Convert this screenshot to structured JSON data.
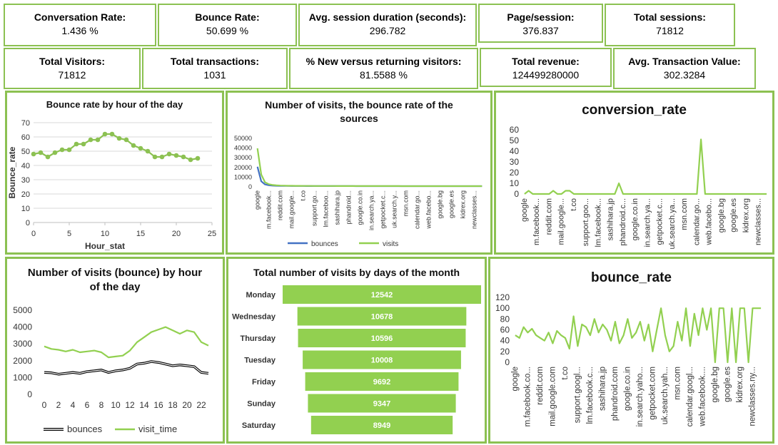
{
  "kpis": [
    {
      "label": "Conversation Rate:",
      "value": "1.436 %"
    },
    {
      "label": "Bounce Rate:",
      "value": "50.699 %"
    },
    {
      "label": "Avg. session duration (seconds):",
      "value": "296.782"
    },
    {
      "label": "Page/session:",
      "value": "376.837"
    },
    {
      "label": "Total sessions:",
      "value": "71812"
    },
    {
      "label": "Total Visitors:",
      "value": "71812"
    },
    {
      "label": "Total transactions:",
      "value": "1031"
    },
    {
      "label": "% New versus returning visitors:",
      "value": "81.5588 %"
    },
    {
      "label": "Total revenue:",
      "value": "124499280000"
    },
    {
      "label": "Avg. Transaction Value:",
      "value": "302.3284"
    }
  ],
  "chart_data": [
    {
      "type": "line",
      "title": "Bounce rate by hour of the day",
      "xlabel": "Hour_stat",
      "ylabel": "Bounce_rate",
      "x": [
        0,
        1,
        2,
        3,
        4,
        5,
        6,
        7,
        8,
        9,
        10,
        11,
        12,
        13,
        14,
        15,
        16,
        17,
        18,
        19,
        20,
        21,
        22,
        23
      ],
      "values": [
        48,
        49,
        46,
        49,
        51,
        51,
        55,
        55,
        58,
        58,
        62,
        62,
        59,
        58,
        54,
        52,
        50,
        46,
        46,
        48,
        47,
        46,
        44,
        45
      ],
      "color": "#8cc152",
      "markers": true,
      "xlim": [
        0,
        25
      ],
      "xticks": [
        0,
        5,
        10,
        15,
        20,
        25
      ],
      "ylim": [
        0,
        70
      ],
      "yticks": [
        0,
        10,
        20,
        30,
        40,
        50,
        60,
        70
      ],
      "grid": true
    },
    {
      "type": "line",
      "title": "Number of visits, the bounce rate of the sources",
      "categories": [
        "google",
        null,
        null,
        "m.facebook...",
        null,
        null,
        "reddit.com",
        null,
        null,
        "mail.google...",
        null,
        null,
        "t.co",
        null,
        null,
        "support.go...",
        null,
        null,
        "lm.faceboo...",
        null,
        null,
        "sashihara.jp",
        null,
        null,
        "phandroid...",
        null,
        null,
        "google.co.in",
        null,
        null,
        "in.search.ya...",
        null,
        null,
        "getpocket.c...",
        null,
        null,
        "uk.search.y...",
        null,
        null,
        "msn.com",
        null,
        null,
        "calendar.go...",
        null,
        null,
        "web.facebo...",
        null,
        null,
        "google.bg",
        null,
        null,
        "google.es",
        null,
        null,
        "kidrex.org",
        null,
        null,
        "newclasses...",
        null,
        null
      ],
      "series": [
        {
          "name": "bounces",
          "color": "#4472c4",
          "values": [
            20000,
            5000,
            1800,
            900,
            550,
            380,
            300,
            240,
            200,
            170,
            150,
            130,
            120,
            110,
            100,
            90,
            80,
            70,
            65,
            60,
            55,
            50,
            45,
            42,
            40,
            38,
            35,
            32,
            30,
            28,
            26,
            24,
            22,
            20,
            19,
            18,
            17,
            16,
            15,
            14,
            13,
            12,
            11,
            10,
            9,
            8,
            7,
            6,
            5,
            4,
            4,
            3,
            3,
            2,
            2,
            2,
            1,
            1,
            1,
            0
          ]
        },
        {
          "name": "visits",
          "color": "#92d050",
          "values": [
            39000,
            12000,
            4000,
            2000,
            1200,
            800,
            600,
            500,
            400,
            350,
            300,
            280,
            250,
            220,
            200,
            180,
            160,
            150,
            140,
            130,
            120,
            110,
            100,
            95,
            90,
            85,
            80,
            75,
            70,
            65,
            60,
            55,
            50,
            48,
            45,
            42,
            40,
            38,
            35,
            32,
            30,
            28,
            26,
            24,
            22,
            20,
            18,
            16,
            14,
            12,
            10,
            9,
            8,
            7,
            6,
            5,
            4,
            3,
            2,
            1
          ]
        }
      ],
      "ylim": [
        0,
        50000
      ],
      "yticks": [
        0,
        10000,
        20000,
        30000,
        40000,
        50000
      ],
      "grid": false,
      "legend": "bottom"
    },
    {
      "type": "line",
      "title": "conversion_rate",
      "categories": [
        "google",
        null,
        null,
        "m.facebook...",
        null,
        null,
        "reddit.com",
        null,
        null,
        "mail.google...",
        null,
        null,
        "t.co",
        null,
        null,
        "support.goo...",
        null,
        null,
        "lm.facebook...",
        null,
        null,
        "sashihara.jp",
        null,
        null,
        "phandroid.c...",
        null,
        null,
        "google.co.in",
        null,
        null,
        "in.search.ya...",
        null,
        null,
        "getpocket.c...",
        null,
        null,
        "uk.search.ya...",
        null,
        null,
        "msn.com",
        null,
        null,
        "calendar.go...",
        null,
        null,
        "web.facebo...",
        null,
        null,
        "google.bg",
        null,
        null,
        "google.es",
        null,
        null,
        "kidrex.org",
        null,
        null,
        "newclasses...",
        null,
        null
      ],
      "values": [
        0,
        3,
        0,
        0,
        0,
        0,
        0,
        3,
        0,
        0,
        3,
        3,
        0,
        0,
        0,
        0,
        0,
        0,
        0,
        0,
        0,
        0,
        0,
        10,
        0,
        0,
        0,
        0,
        0,
        0,
        0,
        0,
        0,
        0,
        0,
        0,
        0,
        0,
        0,
        0,
        0,
        0,
        0,
        51,
        0,
        0,
        0,
        0,
        0,
        0,
        0,
        0,
        0,
        0,
        0,
        0,
        0,
        0,
        0,
        0
      ],
      "color": "#92d050",
      "ylim": [
        0,
        60
      ],
      "yticks": [
        0,
        10,
        20,
        30,
        40,
        50,
        60
      ],
      "grid": false
    },
    {
      "type": "line",
      "title": "Number of visits (bounce) by hour of the day",
      "x": [
        0,
        1,
        2,
        3,
        4,
        5,
        6,
        7,
        8,
        9,
        10,
        11,
        12,
        13,
        14,
        15,
        16,
        17,
        18,
        19,
        20,
        21,
        22,
        23
      ],
      "series": [
        {
          "name": "bounces",
          "color": "#000000",
          "values": [
            1300,
            1280,
            1200,
            1250,
            1300,
            1250,
            1350,
            1400,
            1450,
            1300,
            1400,
            1450,
            1550,
            1800,
            1850,
            1950,
            1900,
            1800,
            1700,
            1750,
            1700,
            1650,
            1300,
            1250
          ]
        },
        {
          "name": "visit_time",
          "color": "#92d050",
          "values": [
            2850,
            2700,
            2650,
            2550,
            2650,
            2500,
            2550,
            2600,
            2500,
            2200,
            2250,
            2300,
            2600,
            3100,
            3400,
            3700,
            3850,
            4000,
            3800,
            3600,
            3800,
            3700,
            3100,
            2900
          ]
        }
      ],
      "xlim": [
        0,
        23
      ],
      "xticks": [
        0,
        2,
        4,
        6,
        8,
        10,
        12,
        14,
        16,
        18,
        20,
        22
      ],
      "ylim": [
        0,
        5000
      ],
      "yticks": [
        0,
        1000,
        2000,
        3000,
        4000,
        5000
      ],
      "grid": false,
      "legend": "bottom"
    },
    {
      "type": "funnel",
      "title": "Total number of visits by days of the month",
      "categories": [
        "Monday",
        "Wednesday",
        "Thursday",
        "Tuesday",
        "Friday",
        "Sunday",
        "Saturday"
      ],
      "values": [
        12542,
        10678,
        10596,
        10008,
        9692,
        9347,
        8949
      ],
      "color": "#92d050"
    },
    {
      "type": "line",
      "title": "bounce_rate",
      "categories": [
        "google",
        null,
        null,
        "m.facebook.co...",
        null,
        null,
        "reddit.com",
        null,
        null,
        "mail.google.com",
        null,
        null,
        "t.co",
        null,
        null,
        "support.googl...",
        null,
        null,
        "lm.facebook.c...",
        null,
        null,
        "sashihara.jp",
        null,
        null,
        "phandroid.com",
        null,
        null,
        "google.co.in",
        null,
        null,
        "in.search.yaho...",
        null,
        null,
        "getpocket.com",
        null,
        null,
        "uk.search.yah...",
        null,
        null,
        "msn.com",
        null,
        null,
        "calendar.googl...",
        null,
        null,
        "web.facebook....",
        null,
        null,
        "google.bg",
        null,
        null,
        "google.es",
        null,
        null,
        "kidrex.org",
        null,
        null,
        "newclasses.ny...",
        null,
        null
      ],
      "values": [
        50,
        45,
        65,
        55,
        62,
        50,
        45,
        40,
        55,
        35,
        58,
        50,
        45,
        25,
        85,
        30,
        70,
        65,
        50,
        80,
        55,
        70,
        60,
        40,
        75,
        35,
        50,
        80,
        45,
        55,
        75,
        40,
        70,
        20,
        60,
        100,
        50,
        20,
        30,
        75,
        40,
        100,
        30,
        90,
        50,
        100,
        60,
        100,
        0,
        100,
        100,
        0,
        100,
        0,
        100,
        100,
        0,
        100,
        100,
        100
      ],
      "color": "#92d050",
      "ylim": [
        0,
        120
      ],
      "yticks": [
        0,
        20,
        40,
        60,
        80,
        100,
        120
      ],
      "grid": false
    }
  ]
}
